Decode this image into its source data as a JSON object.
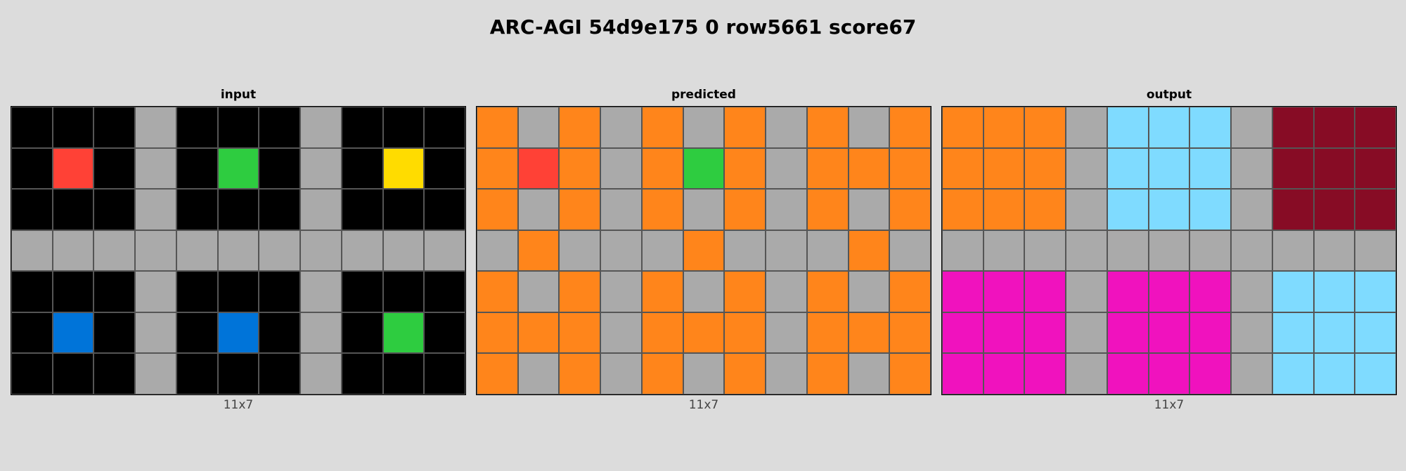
{
  "title": "ARC-AGI 54d9e175 0 row5661 score67",
  "palette": {
    "0": "#000000",
    "2": "#ff4136",
    "3": "#2ecc40",
    "4": "#ffdc00",
    "5": "#aaaaaa",
    "1": "#0074d9",
    "7": "#ff851b",
    "8": "#7fdbff",
    "9": "#870c25",
    "6": "#f012be"
  },
  "panels": [
    {
      "label": "input",
      "dims": "11x7",
      "grid": [
        [
          0,
          0,
          0,
          5,
          0,
          0,
          0,
          5,
          0,
          0,
          0
        ],
        [
          0,
          2,
          0,
          5,
          0,
          3,
          0,
          5,
          0,
          4,
          0
        ],
        [
          0,
          0,
          0,
          5,
          0,
          0,
          0,
          5,
          0,
          0,
          0
        ],
        [
          5,
          5,
          5,
          5,
          5,
          5,
          5,
          5,
          5,
          5,
          5
        ],
        [
          0,
          0,
          0,
          5,
          0,
          0,
          0,
          5,
          0,
          0,
          0
        ],
        [
          0,
          1,
          0,
          5,
          0,
          1,
          0,
          5,
          0,
          3,
          0
        ],
        [
          0,
          0,
          0,
          5,
          0,
          0,
          0,
          5,
          0,
          0,
          0
        ]
      ]
    },
    {
      "label": "predicted",
      "dims": "11x7",
      "grid": [
        [
          7,
          5,
          7,
          5,
          7,
          5,
          7,
          5,
          7,
          5,
          7
        ],
        [
          7,
          2,
          7,
          5,
          7,
          3,
          7,
          5,
          7,
          7,
          7
        ],
        [
          7,
          5,
          7,
          5,
          7,
          5,
          7,
          5,
          7,
          5,
          7
        ],
        [
          5,
          7,
          5,
          5,
          5,
          7,
          5,
          5,
          5,
          7,
          5
        ],
        [
          7,
          5,
          7,
          5,
          7,
          5,
          7,
          5,
          7,
          5,
          7
        ],
        [
          7,
          7,
          7,
          5,
          7,
          7,
          7,
          5,
          7,
          7,
          7
        ],
        [
          7,
          5,
          7,
          5,
          7,
          5,
          7,
          5,
          7,
          5,
          7
        ]
      ]
    },
    {
      "label": "output",
      "dims": "11x7",
      "grid": [
        [
          7,
          7,
          7,
          5,
          8,
          8,
          8,
          5,
          9,
          9,
          9
        ],
        [
          7,
          7,
          7,
          5,
          8,
          8,
          8,
          5,
          9,
          9,
          9
        ],
        [
          7,
          7,
          7,
          5,
          8,
          8,
          8,
          5,
          9,
          9,
          9
        ],
        [
          5,
          5,
          5,
          5,
          5,
          5,
          5,
          5,
          5,
          5,
          5
        ],
        [
          6,
          6,
          6,
          5,
          6,
          6,
          6,
          5,
          8,
          8,
          8
        ],
        [
          6,
          6,
          6,
          5,
          6,
          6,
          6,
          5,
          8,
          8,
          8
        ],
        [
          6,
          6,
          6,
          5,
          6,
          6,
          6,
          5,
          8,
          8,
          8
        ]
      ]
    }
  ]
}
